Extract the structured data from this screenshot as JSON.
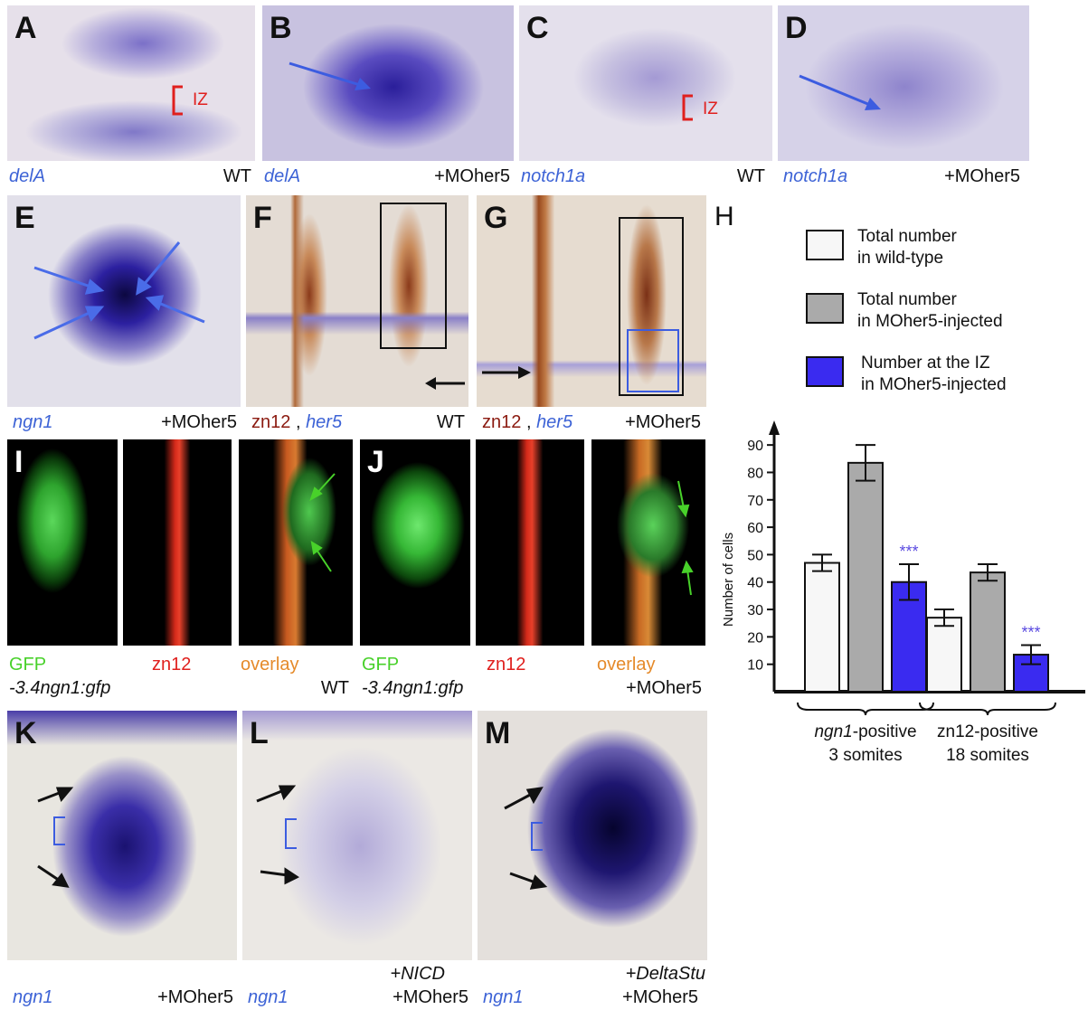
{
  "panels": {
    "A": {
      "letter": "A",
      "gene": "delA",
      "cond": "WT",
      "iz": "IZ"
    },
    "B": {
      "letter": "B",
      "gene": "delA",
      "cond": "+MOher5"
    },
    "C": {
      "letter": "C",
      "gene": "notch1a",
      "cond": "WT",
      "iz": "IZ"
    },
    "D": {
      "letter": "D",
      "gene": "notch1a",
      "cond": "+MOher5"
    },
    "E": {
      "letter": "E",
      "gene": "ngn1",
      "cond": "+MOher5"
    },
    "F": {
      "letter": "F",
      "marker1": "zn12",
      "sep": ",",
      "marker2": "her5",
      "cond": "WT"
    },
    "G": {
      "letter": "G",
      "marker1": "zn12",
      "sep": ",",
      "marker2": "her5",
      "cond": "+MOher5"
    },
    "I": {
      "letter": "I",
      "gfp": "GFP",
      "zn12": "zn12",
      "overlay": "overlay",
      "transgene": "-3.4ngn1:gfp",
      "cond": "WT"
    },
    "J": {
      "letter": "J",
      "gfp": "GFP",
      "zn12": "zn12",
      "overlay": "overlay",
      "transgene": "-3.4ngn1:gfp",
      "cond": "+MOher5"
    },
    "K": {
      "letter": "K",
      "gene": "ngn1",
      "cond": "+MOher5"
    },
    "L": {
      "letter": "L",
      "gene": "ngn1",
      "cond1": "+NICD",
      "cond2": "+MOher5"
    },
    "M": {
      "letter": "M",
      "gene": "ngn1",
      "cond1": "+DeltaStu",
      "cond2": "+MOher5"
    }
  },
  "chart_data": {
    "panel_letter": "H",
    "type": "bar",
    "ylabel": "Number of cells",
    "ylim": [
      0,
      95
    ],
    "yticks": [
      10,
      20,
      30,
      40,
      50,
      60,
      70,
      80,
      90
    ],
    "legend": [
      {
        "line1": "Total number",
        "line2": "in wild-type",
        "color": "#f7f7f7"
      },
      {
        "line1": "Total number",
        "line2": "in MOher5-injected",
        "color": "#aaaaaa"
      },
      {
        "line1": "Number at the IZ",
        "line2": "in MOher5-injected",
        "color": "#3a2bf0"
      }
    ],
    "groups": [
      {
        "label_ital": "ngn1",
        "label_rest": "-positive",
        "label2": "3 somites"
      },
      {
        "label_ital": "",
        "label_rest": "zn12-positive",
        "label2": "18 somites"
      }
    ],
    "series": [
      {
        "name": "Total number in wild-type",
        "values": [
          47,
          27
        ],
        "errors": [
          3,
          3
        ]
      },
      {
        "name": "Total number in MOher5-injected",
        "values": [
          83.5,
          43.5
        ],
        "errors": [
          6.5,
          3
        ]
      },
      {
        "name": "Number at the IZ in MOher5-injected",
        "values": [
          40,
          13.5
        ],
        "errors": [
          6.5,
          3.5
        ]
      }
    ],
    "significance": [
      "***",
      "***"
    ]
  }
}
